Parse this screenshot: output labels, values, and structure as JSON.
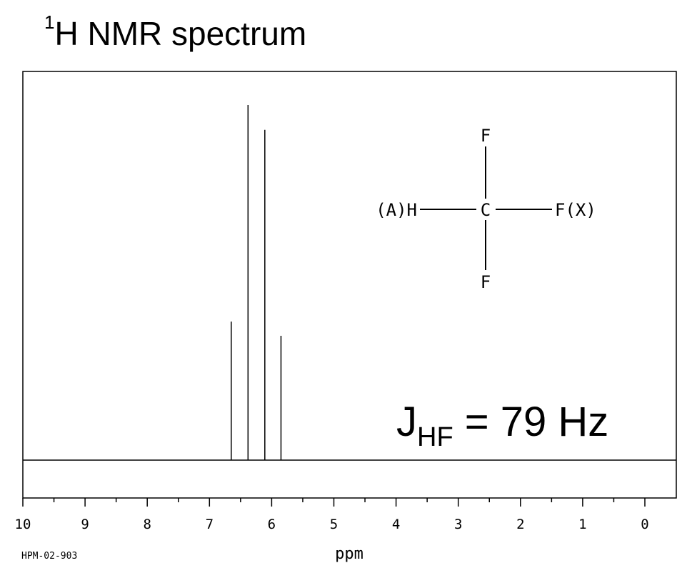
{
  "header": {
    "title_sup": "1",
    "title_main": "H NMR spectrum"
  },
  "chart_data": {
    "type": "line",
    "title": "1H NMR spectrum",
    "xlabel": "ppm",
    "ylabel": "",
    "xlim": [
      10,
      0
    ],
    "x_reversed": true,
    "major_ticks": [
      10,
      9,
      8,
      7,
      6,
      5,
      4,
      3,
      2,
      1,
      0
    ],
    "minor_ticks": [
      9.5,
      8.5,
      7.5,
      6.5,
      5.5,
      4.5,
      3.5,
      2.5,
      1.5,
      0.5
    ],
    "tick_labels": [
      "10",
      "9",
      "8",
      "7",
      "6",
      "5",
      "4",
      "3",
      "2",
      "1",
      "0"
    ],
    "peaks": [
      {
        "ppm": 6.65,
        "height": 0.39
      },
      {
        "ppm": 6.38,
        "height": 1.0
      },
      {
        "ppm": 6.11,
        "height": 0.93
      },
      {
        "ppm": 5.85,
        "height": 0.35
      }
    ],
    "annotation_code": "HPM-02-903",
    "coupling": {
      "main": "J",
      "sub": "HF",
      "value": " = 79 Hz"
    },
    "molecule": {
      "center": "C",
      "top": "F",
      "bottom": "F",
      "left": "(A)H",
      "right": "F(X)"
    },
    "grid": false
  }
}
